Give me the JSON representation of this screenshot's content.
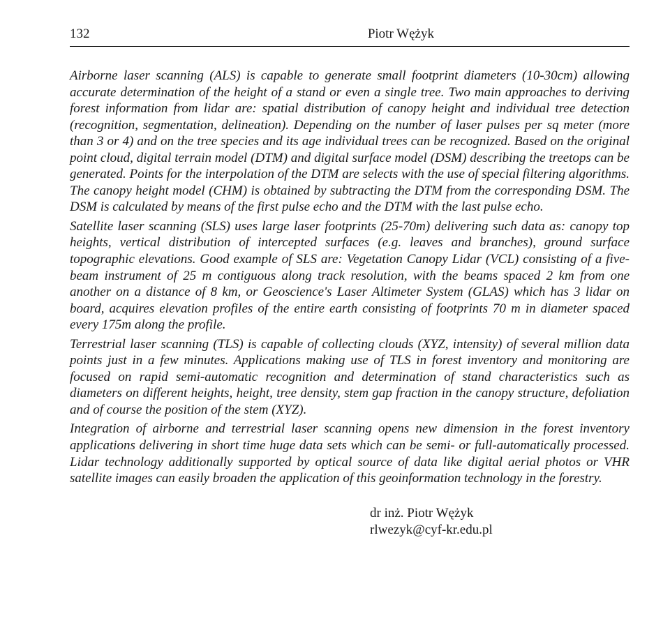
{
  "page_number": "132",
  "header_author": "Piotr Wężyk",
  "paragraphs": [
    "Airborne laser scanning (ALS) is capable to generate small footprint diameters (10-30cm) allowing accurate determination of the height of a stand or even a single tree. Two main approaches to deriving forest information from lidar are: spatial distribution of canopy height and individual tree detection (recognition, segmentation, delineation). Depending on the number of laser pulses per sq meter (more than 3 or 4) and on the tree species and its age individual trees can be recognized. Based on the original point cloud, digital terrain model (DTM) and digital surface model (DSM) describing the treetops can be generated. Points for the interpolation of the DTM are selects with the use of special filtering algorithms. The canopy height model (CHM) is obtained by subtracting the DTM from the corresponding DSM. The DSM is calculated by means of the first pulse echo and the DTM with the last pulse echo.",
    "Satellite laser scanning (SLS) uses large laser footprints (25-70m) delivering such data as: canopy top heights, vertical distribution of intercepted surfaces (e.g. leaves and branches), ground surface topographic elevations. Good example of SLS are: Vegetation Canopy Lidar (VCL) consisting of a five-beam instrument of 25 m contiguous along track resolution, with the beams spaced 2 km from one another on a distance of 8 km, or Geoscience's Laser Altimeter System (GLAS) which has 3 lidar on board, acquires elevation profiles of the entire earth consisting of footprints 70 m in diameter spaced every 175m along the profile.",
    "Terrestrial laser scanning (TLS) is capable of collecting clouds (XYZ, intensity) of several million data points just in a few minutes. Applications making use of TLS in forest inventory and monitoring are focused on rapid semi-automatic recognition and determination of stand characteristics such as diameters on different heights, height, tree density, stem gap fraction in the canopy structure, defoliation and of course the position of the stem (XYZ).",
    "Integration of airborne and terrestrial laser scanning opens new dimension in the forest inventory applications delivering in short time huge data sets which can be semi- or full-automatically processed. Lidar technology additionally supported by optical source of data like digital aerial photos or VHR satellite images can easily broaden the application of this geoinformation technology in the forestry."
  ],
  "signature_name": "dr inż. Piotr Wężyk",
  "signature_email": "rlwezyk@cyf-kr.edu.pl"
}
